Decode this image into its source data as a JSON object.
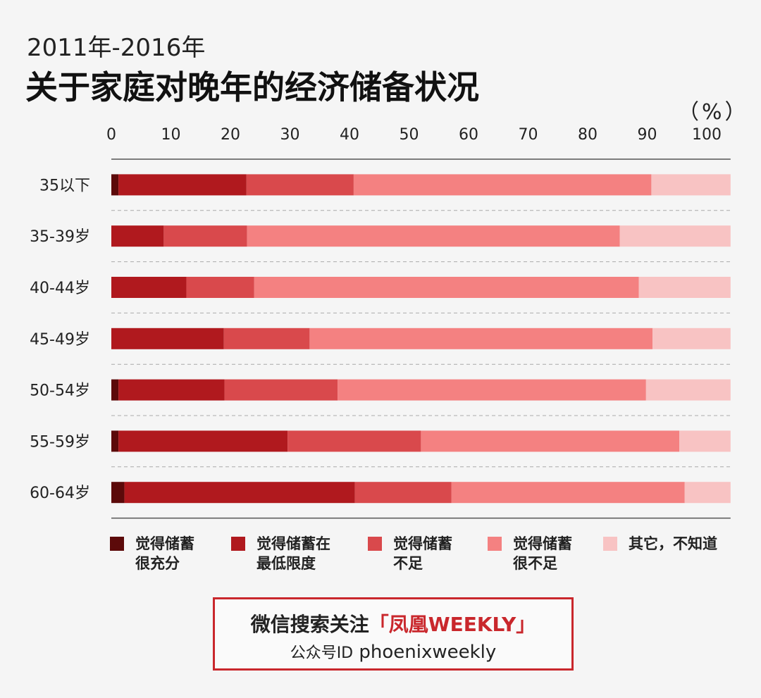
{
  "header": {
    "subtitle": "2011年-2016年",
    "title": "关于家庭对晚年的经济储备状况",
    "unit": "（%）"
  },
  "chart_data": {
    "type": "bar",
    "orientation": "horizontal",
    "stacked": true,
    "xlim": [
      0,
      104
    ],
    "x_ticks": [
      0,
      10,
      20,
      30,
      40,
      50,
      60,
      70,
      80,
      90,
      100
    ],
    "x_axis_position": "top",
    "categories": [
      "35以下",
      "35-39岁",
      "40-44岁",
      "45-49岁",
      "50-54岁",
      "55-59岁",
      "60-64岁"
    ],
    "series": [
      {
        "name": "觉得储蓄很充分",
        "color": "#5c0a0a",
        "values": [
          1.2,
          0,
          0,
          0,
          1.2,
          1.2,
          2.2
        ]
      },
      {
        "name": "觉得储蓄在最低限度",
        "color": "#b0191e",
        "values": [
          21.5,
          8.8,
          12.6,
          18.9,
          17.8,
          28.4,
          38.7
        ]
      },
      {
        "name": "觉得储蓄不足",
        "color": "#d9494c",
        "values": [
          18.0,
          14.0,
          11.4,
          14.4,
          19.0,
          22.4,
          16.2
        ]
      },
      {
        "name": "觉得储蓄很不足",
        "color": "#f48181",
        "values": [
          50.0,
          62.6,
          64.6,
          57.6,
          51.8,
          43.4,
          39.2
        ]
      },
      {
        "name": "其它，不知道",
        "color": "#f8c3c3",
        "values": [
          13.3,
          18.6,
          15.4,
          13.1,
          14.2,
          8.6,
          7.7
        ]
      }
    ],
    "grid": "dashed-horizontal"
  },
  "legend": {
    "items": [
      {
        "line1": "觉得储蓄",
        "line2": "很充分",
        "color": "#5c0a0a"
      },
      {
        "line1": "觉得储蓄在",
        "line2": "最低限度",
        "color": "#b0191e"
      },
      {
        "line1": "觉得储蓄",
        "line2": "不足",
        "color": "#d9494c"
      },
      {
        "line1": "觉得储蓄",
        "line2": "很不足",
        "color": "#f48181"
      },
      {
        "line1": "其它，不知道",
        "line2": "",
        "color": "#f8c3c3"
      }
    ]
  },
  "watermark_box": {
    "line1_prefix": "微信搜索关注",
    "line1_brand": "「凤凰WEEKLY」",
    "line2_prefix": "公众号ID",
    "line2_id": "phoenixweekly"
  },
  "background_watermark": "凤凰WEEKLY"
}
